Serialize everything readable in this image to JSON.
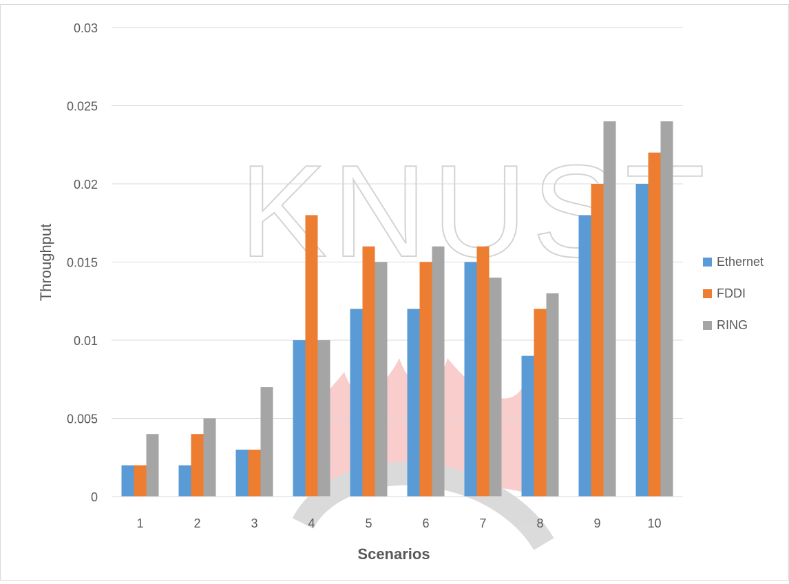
{
  "watermark": {
    "text": "KNUST",
    "color": "#8c8c8c",
    "flame_color": "#e0332f"
  },
  "chart_data": {
    "type": "bar",
    "title": "",
    "xlabel": "Scenarios",
    "ylabel": "Throughput",
    "categories": [
      "1",
      "2",
      "3",
      "4",
      "5",
      "6",
      "7",
      "8",
      "9",
      "10"
    ],
    "ylim": [
      0,
      0.03
    ],
    "yticks": [
      "0",
      "0.005",
      "0.01",
      "0.015",
      "0.02",
      "0.025",
      "0.03"
    ],
    "grid": true,
    "legend_position": "right",
    "series": [
      {
        "name": "Ethernet",
        "color": "#5b9bd5",
        "values": [
          0.002,
          0.002,
          0.003,
          0.01,
          0.012,
          0.012,
          0.015,
          0.009,
          0.018,
          0.02
        ]
      },
      {
        "name": "FDDI",
        "color": "#ed7d31",
        "values": [
          0.002,
          0.004,
          0.003,
          0.018,
          0.016,
          0.015,
          0.016,
          0.012,
          0.02,
          0.022
        ]
      },
      {
        "name": "RING",
        "color": "#a5a5a5",
        "values": [
          0.004,
          0.005,
          0.007,
          0.01,
          0.015,
          0.016,
          0.014,
          0.013,
          0.024,
          0.024
        ]
      }
    ]
  }
}
